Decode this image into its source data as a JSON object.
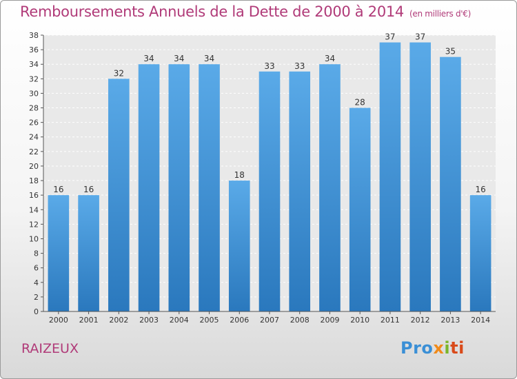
{
  "chart_data": {
    "type": "bar",
    "title": "Remboursements Annuels de la Dette de 2000 à 2014",
    "subtitle": "(en milliers d'€)",
    "categories": [
      "2000",
      "2001",
      "2002",
      "2003",
      "2004",
      "2005",
      "2006",
      "2007",
      "2008",
      "2009",
      "2010",
      "2011",
      "2012",
      "2013",
      "2014"
    ],
    "values": [
      16,
      16,
      32,
      34,
      34,
      34,
      18,
      33,
      33,
      34,
      28,
      37,
      37,
      35,
      16
    ],
    "ylim": [
      0,
      38
    ],
    "ytick_step": 2,
    "grid": true,
    "bar_color_top": "#5aaae8",
    "bar_color_bottom": "#2a78bd"
  },
  "footer": {
    "commune": "RAIZEUX",
    "logo": "Proxiti"
  }
}
